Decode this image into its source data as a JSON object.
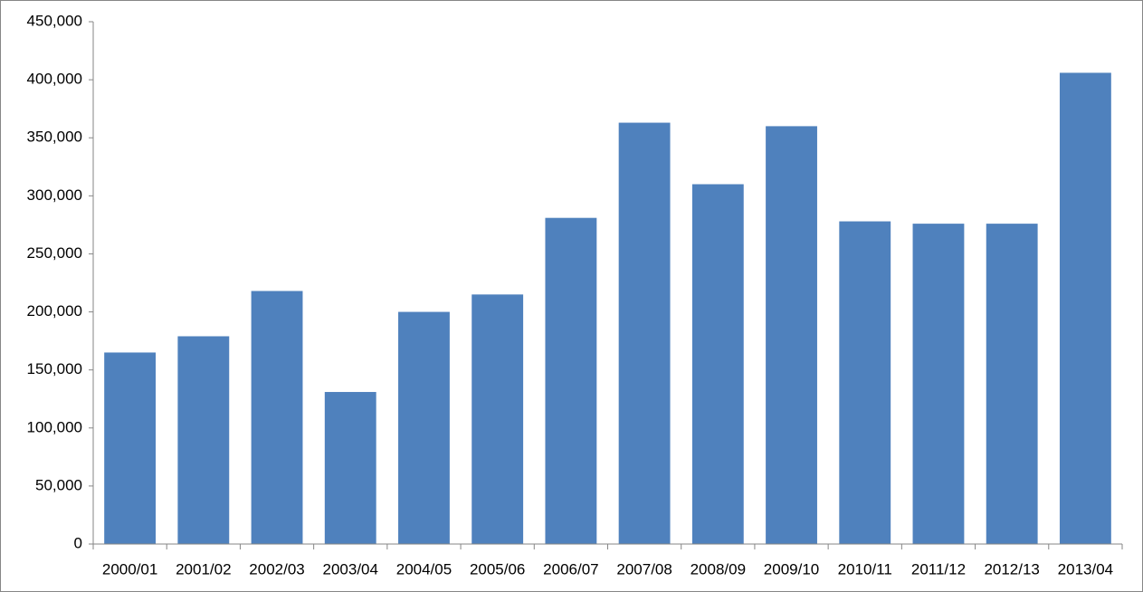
{
  "chart_data": {
    "type": "bar",
    "categories": [
      "2000/01",
      "2001/02",
      "2002/03",
      "2003/04",
      "2004/05",
      "2005/06",
      "2006/07",
      "2007/08",
      "2008/09",
      "2009/10",
      "2010/11",
      "2011/12",
      "2012/13",
      "2013/04"
    ],
    "values": [
      165000,
      179000,
      218000,
      131000,
      200000,
      215000,
      281000,
      363000,
      310000,
      360000,
      278000,
      276000,
      276000,
      406000
    ],
    "color": "#4f81bd",
    "ylim": [
      0,
      450000
    ],
    "yticks": [
      0,
      {
        "value": 50000,
        "label": "50,000"
      },
      {
        "value": 100000,
        "label": "100,000"
      },
      {
        "value": 150000,
        "label": "150,000"
      },
      {
        "value": 200000,
        "label": "200,000"
      },
      {
        "value": 250000,
        "label": "250,000"
      },
      {
        "value": 300000,
        "label": "300,000"
      },
      {
        "value": 350000,
        "label": "350,000"
      },
      {
        "value": 400000,
        "label": "400,000"
      },
      {
        "value": 450000,
        "label": "450,000"
      }
    ],
    "grid": false
  }
}
